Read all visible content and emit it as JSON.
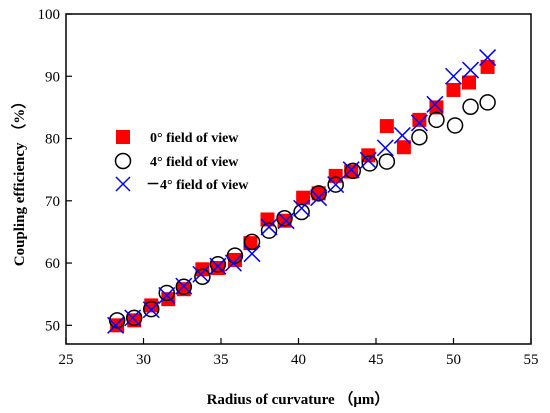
{
  "chart_data": {
    "type": "scatter",
    "xlabel": "Radius of curvature （μm）",
    "ylabel": "Coupling efficiency  （%）",
    "xlim": [
      25,
      55
    ],
    "ylim": [
      47,
      100
    ],
    "xticks": [
      25,
      30,
      35,
      40,
      45,
      50,
      55
    ],
    "yticks": [
      50,
      60,
      70,
      80,
      90,
      100
    ],
    "legend_position": "center-left",
    "series": [
      {
        "name": "0° field of view",
        "marker": "filled-square",
        "color": "#ff0000",
        "x": [
          28.3,
          29.4,
          30.5,
          31.6,
          32.6,
          33.8,
          34.8,
          35.9,
          36.9,
          38.0,
          39.1,
          40.3,
          41.3,
          42.4,
          43.4,
          44.5,
          45.7,
          46.8,
          47.8,
          48.9,
          50.0,
          51.0,
          52.2
        ],
        "y": [
          50.0,
          50.8,
          53.2,
          54.2,
          55.8,
          59.0,
          59.2,
          60.5,
          63.2,
          67.0,
          66.8,
          70.5,
          71.2,
          74.0,
          74.7,
          77.3,
          82.0,
          78.6,
          83.0,
          85.0,
          87.8,
          89.0,
          91.5
        ]
      },
      {
        "name": "4° field of view",
        "marker": "open-circle",
        "color": "#000000",
        "x": [
          28.3,
          29.4,
          30.5,
          31.5,
          32.6,
          33.8,
          34.8,
          35.9,
          37.0,
          38.1,
          39.1,
          40.2,
          41.3,
          42.4,
          43.5,
          44.6,
          45.7,
          47.8,
          48.9,
          50.1,
          51.1,
          52.2
        ],
        "y": [
          50.8,
          51.2,
          52.6,
          55.2,
          56.2,
          57.8,
          59.8,
          61.2,
          63.4,
          65.2,
          67.2,
          68.2,
          71.2,
          72.6,
          74.8,
          76.0,
          76.3,
          80.2,
          83.0,
          82.1,
          85.1,
          85.8
        ]
      },
      {
        "name": "－4° field of view",
        "marker": "x",
        "color": "#0000ff",
        "x": [
          28.2,
          29.3,
          30.5,
          31.5,
          32.6,
          33.7,
          34.8,
          35.8,
          37.0,
          38.1,
          39.2,
          40.2,
          41.3,
          42.4,
          43.4,
          44.5,
          45.6,
          46.7,
          47.8,
          48.8,
          50.0,
          51.1,
          52.2
        ],
        "y": [
          50.0,
          51.2,
          52.5,
          54.8,
          56.3,
          58.2,
          59.5,
          60.0,
          61.5,
          65.8,
          66.8,
          68.8,
          70.5,
          72.6,
          75.0,
          76.5,
          78.5,
          80.5,
          82.5,
          85.5,
          90.0,
          91.0,
          93.0
        ]
      }
    ]
  }
}
